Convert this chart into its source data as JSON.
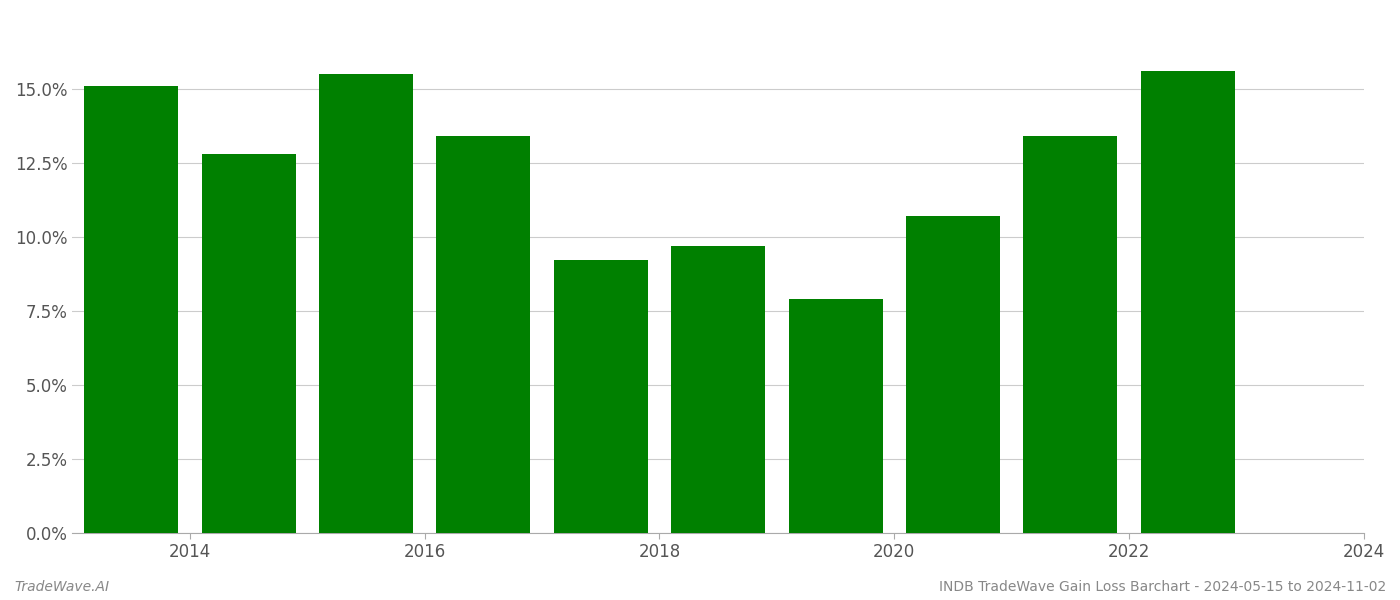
{
  "years": [
    2013.5,
    2014.5,
    2015.5,
    2016.5,
    2017.5,
    2018.5,
    2019.5,
    2020.5,
    2021.5,
    2022.5
  ],
  "values": [
    0.151,
    0.128,
    0.155,
    0.134,
    0.092,
    0.097,
    0.079,
    0.107,
    0.134,
    0.156
  ],
  "bar_color": "#008000",
  "background_color": "#ffffff",
  "grid_color": "#cccccc",
  "ylim": [
    0,
    0.175
  ],
  "yticks": [
    0.0,
    0.025,
    0.05,
    0.075,
    0.1,
    0.125,
    0.15
  ],
  "xtick_positions": [
    2014,
    2016,
    2018,
    2020,
    2022,
    2024
  ],
  "xtick_labels": [
    "2014",
    "2016",
    "2018",
    "2020",
    "2022",
    "2024"
  ],
  "xlim": [
    2013.0,
    2024.0
  ],
  "footer_left": "TradeWave.AI",
  "footer_right": "INDB TradeWave Gain Loss Barchart - 2024-05-15 to 2024-11-02",
  "footer_color": "#888888",
  "tick_fontsize": 12,
  "bar_width": 0.8
}
